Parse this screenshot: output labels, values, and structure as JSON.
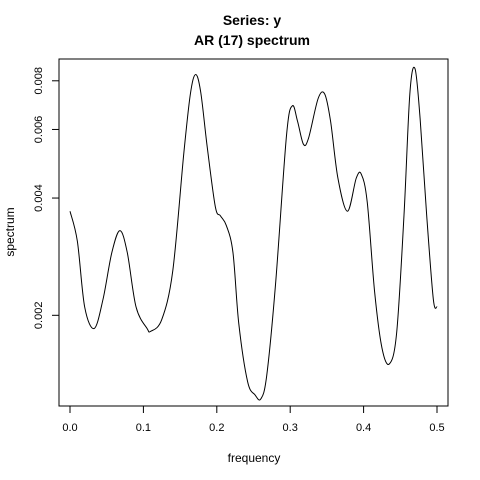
{
  "chart_data": {
    "type": "line",
    "title": "Series: y",
    "subtitle": "AR (17) spectrum",
    "xlabel": "frequency",
    "ylabel": "spectrum",
    "log_y": true,
    "xlim": [
      -0.015,
      0.515
    ],
    "ylim": [
      0.00117,
      0.0091
    ],
    "x_ticks": [
      {
        "value": 0.0,
        "label": "0.0"
      },
      {
        "value": 0.1,
        "label": "0.1"
      },
      {
        "value": 0.2,
        "label": "0.2"
      },
      {
        "value": 0.3,
        "label": "0.3"
      },
      {
        "value": 0.4,
        "label": "0.4"
      },
      {
        "value": 0.5,
        "label": "0.5"
      }
    ],
    "y_ticks": [
      {
        "value": 0.002,
        "label": "0.002"
      },
      {
        "value": 0.004,
        "label": "0.004"
      },
      {
        "value": 0.006,
        "label": "0.006"
      },
      {
        "value": 0.008,
        "label": "0.008"
      }
    ],
    "series": [
      {
        "name": "AR (17) spectrum",
        "x": [
          0.0,
          0.01,
          0.02,
          0.033,
          0.045,
          0.057,
          0.068,
          0.078,
          0.09,
          0.105,
          0.11,
          0.125,
          0.14,
          0.155,
          0.164,
          0.171,
          0.178,
          0.187,
          0.198,
          0.205,
          0.213,
          0.222,
          0.23,
          0.242,
          0.252,
          0.26,
          0.268,
          0.28,
          0.295,
          0.303,
          0.31,
          0.318,
          0.325,
          0.338,
          0.347,
          0.355,
          0.365,
          0.378,
          0.39,
          0.397,
          0.405,
          0.415,
          0.425,
          0.435,
          0.445,
          0.455,
          0.463,
          0.47,
          0.477,
          0.486,
          0.495,
          0.5
        ],
        "y": [
          0.0037,
          0.0031,
          0.0021,
          0.00185,
          0.0022,
          0.0029,
          0.0033,
          0.0029,
          0.0021,
          0.00185,
          0.00182,
          0.00195,
          0.0026,
          0.0052,
          0.0074,
          0.0083,
          0.0075,
          0.0054,
          0.0038,
          0.0036,
          0.0034,
          0.0029,
          0.0019,
          0.00135,
          0.00125,
          0.00122,
          0.0014,
          0.0024,
          0.0058,
          0.0069,
          0.0063,
          0.0055,
          0.0057,
          0.0072,
          0.0074,
          0.0063,
          0.0045,
          0.0037,
          0.0045,
          0.0046,
          0.0039,
          0.0023,
          0.00165,
          0.0015,
          0.0018,
          0.0036,
          0.0074,
          0.0086,
          0.0064,
          0.0036,
          0.0022,
          0.0021
        ]
      }
    ]
  }
}
